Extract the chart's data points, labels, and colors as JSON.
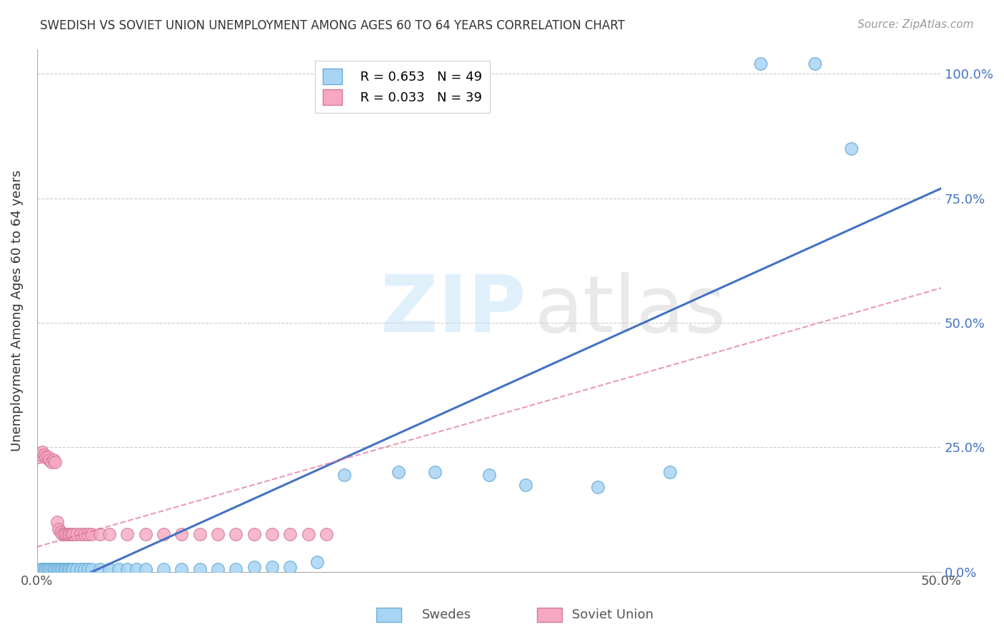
{
  "title": "SWEDISH VS SOVIET UNION UNEMPLOYMENT AMONG AGES 60 TO 64 YEARS CORRELATION CHART",
  "source": "Source: ZipAtlas.com",
  "ylabel": "Unemployment Among Ages 60 to 64 years",
  "xlim": [
    0.0,
    0.5
  ],
  "ylim": [
    0.0,
    1.05
  ],
  "x_ticks": [
    0.0,
    0.1,
    0.2,
    0.3,
    0.4,
    0.5
  ],
  "x_tick_labels": [
    "0.0%",
    "",
    "",
    "",
    "",
    "50.0%"
  ],
  "y_tick_labels": [
    "0.0%",
    "25.0%",
    "50.0%",
    "75.0%",
    "100.0%"
  ],
  "y_ticks": [
    0.0,
    0.25,
    0.5,
    0.75,
    1.0
  ],
  "legend_r_blue": "R = 0.653",
  "legend_n_blue": "N = 49",
  "legend_r_pink": "R = 0.033",
  "legend_n_pink": "N = 39",
  "swedes_color": "#a8d4f5",
  "swedes_edge": "#6baed6",
  "soviet_color": "#f5a8c0",
  "soviet_edge": "#d67a9a",
  "regression_blue": "#4472c4",
  "regression_pink": "#e07090",
  "blue_line_x": [
    0.0,
    0.5
  ],
  "blue_line_y": [
    -0.05,
    0.77
  ],
  "pink_line_x": [
    0.0,
    0.5
  ],
  "pink_line_y": [
    0.05,
    0.57
  ],
  "swedes_x": [
    0.002,
    0.003,
    0.004,
    0.005,
    0.006,
    0.007,
    0.008,
    0.009,
    0.01,
    0.011,
    0.012,
    0.013,
    0.014,
    0.015,
    0.016,
    0.017,
    0.018,
    0.019,
    0.02,
    0.022,
    0.024,
    0.026,
    0.028,
    0.03,
    0.035,
    0.04,
    0.045,
    0.05,
    0.055,
    0.06,
    0.07,
    0.08,
    0.09,
    0.1,
    0.11,
    0.12,
    0.13,
    0.14,
    0.155,
    0.17,
    0.2,
    0.22,
    0.25,
    0.27,
    0.31,
    0.35,
    0.4,
    0.43,
    0.45
  ],
  "swedes_y": [
    0.005,
    0.005,
    0.005,
    0.005,
    0.005,
    0.005,
    0.005,
    0.005,
    0.005,
    0.005,
    0.005,
    0.005,
    0.005,
    0.005,
    0.005,
    0.005,
    0.005,
    0.005,
    0.005,
    0.005,
    0.005,
    0.005,
    0.005,
    0.005,
    0.005,
    0.005,
    0.005,
    0.005,
    0.005,
    0.005,
    0.005,
    0.005,
    0.005,
    0.005,
    0.005,
    0.01,
    0.01,
    0.01,
    0.02,
    0.195,
    0.2,
    0.2,
    0.195,
    0.175,
    0.17,
    0.2,
    1.02,
    1.02,
    0.85
  ],
  "soviet_x": [
    0.001,
    0.002,
    0.003,
    0.004,
    0.005,
    0.006,
    0.007,
    0.008,
    0.009,
    0.01,
    0.011,
    0.012,
    0.013,
    0.014,
    0.015,
    0.016,
    0.017,
    0.018,
    0.019,
    0.02,
    0.022,
    0.024,
    0.026,
    0.028,
    0.03,
    0.035,
    0.04,
    0.05,
    0.06,
    0.07,
    0.08,
    0.09,
    0.1,
    0.11,
    0.12,
    0.13,
    0.14,
    0.15,
    0.16
  ],
  "soviet_y": [
    0.23,
    0.235,
    0.24,
    0.235,
    0.23,
    0.23,
    0.225,
    0.22,
    0.225,
    0.22,
    0.1,
    0.085,
    0.08,
    0.075,
    0.075,
    0.075,
    0.075,
    0.075,
    0.075,
    0.075,
    0.075,
    0.075,
    0.075,
    0.075,
    0.075,
    0.075,
    0.075,
    0.075,
    0.075,
    0.075,
    0.075,
    0.075,
    0.075,
    0.075,
    0.075,
    0.075,
    0.075,
    0.075,
    0.075
  ]
}
